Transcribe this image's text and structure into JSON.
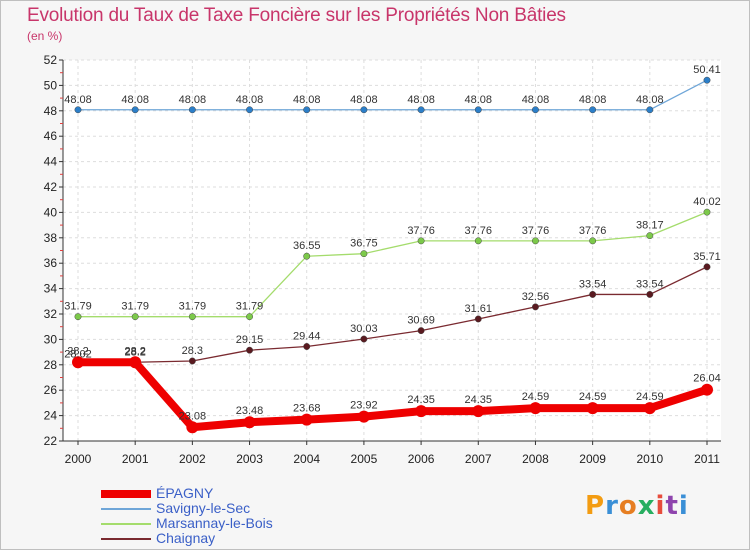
{
  "title": "Evolution du Taux de Taxe Foncière sur les Propriétés Non Bâties",
  "subtitle": "(en %)",
  "logo": "Proxiti",
  "logo_colors": [
    "#f39c12",
    "#3a8fd6",
    "#e67e22",
    "#27ae60",
    "#e74c3c",
    "#8e44ad",
    "#3a8fd6"
  ],
  "chart_data": {
    "type": "line",
    "title": "Evolution du Taux de Taxe Foncière sur les Propriétés Non Bâties",
    "ylabel": "(en %)",
    "xlabel": "",
    "categories": [
      "2000",
      "2001",
      "2002",
      "2003",
      "2004",
      "2005",
      "2006",
      "2007",
      "2008",
      "2009",
      "2010",
      "2011"
    ],
    "ylim": [
      22,
      52
    ],
    "yticks": [
      22,
      24,
      26,
      28,
      30,
      32,
      34,
      36,
      38,
      40,
      42,
      44,
      46,
      48,
      50,
      52
    ],
    "grid": true,
    "legend_position": "bottom-left",
    "series": [
      {
        "name": "ÉPAGNY",
        "color": "#ee0000",
        "point_color": "#ee0000",
        "thick": true,
        "values": [
          28.2,
          28.2,
          23.08,
          23.48,
          23.68,
          23.92,
          24.35,
          24.35,
          24.59,
          24.59,
          24.59,
          26.04
        ],
        "labels": [
          "28.2",
          "28.2",
          "23.08",
          "23.48",
          "23.68",
          "23.92",
          "24.35",
          "24.35",
          "24.59",
          "24.59",
          "24.59",
          "26.04"
        ]
      },
      {
        "name": "Savigny-le-Sec",
        "color": "#6fa6d8",
        "point_color": "#2c7fc9",
        "thick": false,
        "values": [
          48.08,
          48.08,
          48.08,
          48.08,
          48.08,
          48.08,
          48.08,
          48.08,
          48.08,
          48.08,
          48.08,
          50.41
        ],
        "labels": [
          "48.08",
          "48.08",
          "48.08",
          "48.08",
          "48.08",
          "48.08",
          "48.08",
          "48.08",
          "48.08",
          "48.08",
          "48.08",
          "50.41"
        ]
      },
      {
        "name": "Marsannay-le-Bois",
        "color": "#a4dc6c",
        "point_color": "#7cc94a",
        "thick": false,
        "values": [
          31.79,
          31.79,
          31.79,
          31.79,
          36.55,
          36.75,
          37.76,
          37.76,
          37.76,
          37.76,
          38.17,
          40.02
        ],
        "labels": [
          "31.79",
          "31.79",
          "31.79",
          "31.79",
          "36.55",
          "36.75",
          "37.76",
          "37.76",
          "37.76",
          "37.76",
          "38.17",
          "40.02"
        ]
      },
      {
        "name": "Chaignay",
        "color": "#7a2a30",
        "point_color": "#5a1a20",
        "thick": false,
        "values": [
          28.02,
          28.2,
          28.3,
          29.15,
          29.44,
          30.03,
          30.69,
          31.61,
          32.56,
          33.54,
          33.54,
          35.71
        ],
        "labels": [
          "28.02",
          "28.2",
          "28.3",
          "29.15",
          "29.44",
          "30.03",
          "30.69",
          "31.61",
          "32.56",
          "33.54",
          "33.54",
          "35.71"
        ]
      }
    ]
  }
}
